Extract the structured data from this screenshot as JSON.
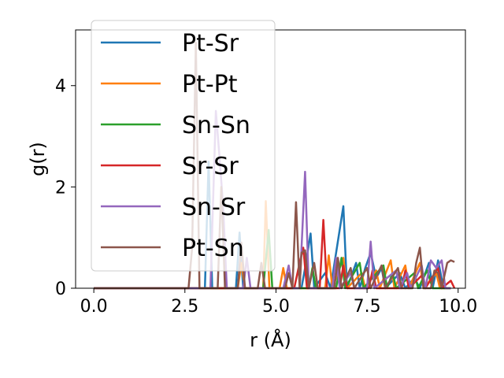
{
  "chart_data": {
    "type": "line",
    "xlabel": "r (Å)",
    "ylabel": "g(r)",
    "xlim": [
      -0.5,
      10.2
    ],
    "ylim": [
      0,
      5.1
    ],
    "xticks": [
      0.0,
      2.5,
      5.0,
      7.5,
      10.0
    ],
    "xtick_labels": [
      "0.0",
      "2.5",
      "5.0",
      "7.5",
      "10.0"
    ],
    "yticks": [
      0,
      2,
      4
    ],
    "ytick_labels": [
      "0",
      "2",
      "4"
    ],
    "grid": false,
    "legend_position": "top-left",
    "series": [
      {
        "name": "Pt-Sr",
        "color": "#1f77b4",
        "points": [
          [
            0,
            0
          ],
          [
            3.05,
            0
          ],
          [
            3.15,
            2.5
          ],
          [
            3.25,
            0
          ],
          [
            3.9,
            0
          ],
          [
            4.0,
            1.1
          ],
          [
            4.1,
            0
          ],
          [
            5.7,
            0
          ],
          [
            5.8,
            0.4
          ],
          [
            5.95,
            1.08
          ],
          [
            6.05,
            0
          ],
          [
            6.35,
            0.3
          ],
          [
            6.5,
            0
          ],
          [
            6.85,
            1.62
          ],
          [
            6.95,
            0
          ],
          [
            7.2,
            0.5
          ],
          [
            7.3,
            0
          ],
          [
            7.45,
            0.4
          ],
          [
            7.6,
            0.7
          ],
          [
            7.75,
            0.2
          ],
          [
            7.9,
            0.4
          ],
          [
            8.0,
            0
          ],
          [
            8.4,
            0.3
          ],
          [
            8.55,
            0
          ],
          [
            8.8,
            0.2
          ],
          [
            8.95,
            0
          ],
          [
            9.2,
            0.5
          ],
          [
            9.3,
            0
          ],
          [
            9.45,
            0.55
          ],
          [
            9.6,
            0
          ],
          [
            9.8,
            0
          ]
        ]
      },
      {
        "name": "Pt-Pt",
        "color": "#ff7f0e",
        "points": [
          [
            0,
            0
          ],
          [
            3.95,
            0
          ],
          [
            4.05,
            0.5
          ],
          [
            4.15,
            0
          ],
          [
            4.65,
            0
          ],
          [
            4.72,
            1.72
          ],
          [
            4.82,
            0
          ],
          [
            5.1,
            0
          ],
          [
            5.2,
            0.4
          ],
          [
            5.3,
            0
          ],
          [
            6.35,
            0
          ],
          [
            6.45,
            0.65
          ],
          [
            6.55,
            0
          ],
          [
            6.85,
            0.6
          ],
          [
            6.95,
            0
          ],
          [
            7.35,
            0.3
          ],
          [
            7.45,
            0
          ],
          [
            7.75,
            0.35
          ],
          [
            7.85,
            0
          ],
          [
            8.15,
            0.55
          ],
          [
            8.25,
            0
          ],
          [
            8.55,
            0.45
          ],
          [
            8.65,
            0
          ],
          [
            8.95,
            0.5
          ],
          [
            9.05,
            0
          ],
          [
            9.4,
            0.3
          ],
          [
            9.5,
            0
          ],
          [
            9.8,
            0
          ]
        ]
      },
      {
        "name": "Sn-Sn",
        "color": "#2ca02c",
        "points": [
          [
            0,
            0
          ],
          [
            4.65,
            0
          ],
          [
            4.8,
            1.15
          ],
          [
            4.9,
            0
          ],
          [
            5.9,
            0
          ],
          [
            6.0,
            0.4
          ],
          [
            6.1,
            0
          ],
          [
            6.65,
            0
          ],
          [
            6.8,
            0.6
          ],
          [
            6.9,
            0
          ],
          [
            7.3,
            0.5
          ],
          [
            7.4,
            0
          ],
          [
            7.95,
            0.45
          ],
          [
            8.05,
            0
          ],
          [
            8.2,
            0.3
          ],
          [
            8.3,
            0
          ],
          [
            8.8,
            0.3
          ],
          [
            8.9,
            0
          ],
          [
            9.15,
            0.35
          ],
          [
            9.3,
            0
          ],
          [
            9.8,
            0
          ]
        ]
      },
      {
        "name": "Sr-Sr",
        "color": "#d62728",
        "points": [
          [
            0,
            0
          ],
          [
            5.5,
            0
          ],
          [
            5.65,
            0.5
          ],
          [
            5.75,
            0.8
          ],
          [
            5.85,
            0
          ],
          [
            6.2,
            0
          ],
          [
            6.3,
            1.35
          ],
          [
            6.4,
            0
          ],
          [
            6.75,
            0
          ],
          [
            6.85,
            0.45
          ],
          [
            6.95,
            0
          ],
          [
            7.55,
            0
          ],
          [
            7.65,
            0.35
          ],
          [
            7.75,
            0
          ],
          [
            8.45,
            0
          ],
          [
            8.55,
            0.35
          ],
          [
            8.65,
            0
          ],
          [
            9.0,
            0.25
          ],
          [
            9.1,
            0
          ],
          [
            9.45,
            0.4
          ],
          [
            9.55,
            0
          ],
          [
            9.8,
            0.15
          ],
          [
            9.9,
            0
          ]
        ]
      },
      {
        "name": "Sn-Sr",
        "color": "#9467bd",
        "points": [
          [
            0,
            0
          ],
          [
            3.2,
            0
          ],
          [
            3.35,
            3.5
          ],
          [
            3.45,
            2.6
          ],
          [
            3.55,
            1.6
          ],
          [
            3.65,
            0
          ],
          [
            4.1,
            0
          ],
          [
            4.2,
            0.6
          ],
          [
            4.3,
            0
          ],
          [
            5.2,
            0
          ],
          [
            5.35,
            0.45
          ],
          [
            5.45,
            0
          ],
          [
            5.65,
            0
          ],
          [
            5.8,
            2.3
          ],
          [
            5.9,
            0
          ],
          [
            6.55,
            0
          ],
          [
            6.65,
            0.6
          ],
          [
            6.75,
            0
          ],
          [
            7.05,
            0.3
          ],
          [
            7.15,
            0
          ],
          [
            7.5,
            0
          ],
          [
            7.6,
            0.92
          ],
          [
            7.7,
            0
          ],
          [
            8.3,
            0.35
          ],
          [
            8.4,
            0
          ],
          [
            8.6,
            0.3
          ],
          [
            8.7,
            0
          ],
          [
            9.0,
            0.45
          ],
          [
            9.1,
            0
          ],
          [
            9.25,
            0.55
          ],
          [
            9.4,
            0.4
          ],
          [
            9.55,
            0.55
          ],
          [
            9.65,
            0
          ],
          [
            9.8,
            0
          ]
        ]
      },
      {
        "name": "Pt-Sn",
        "color": "#8c564b",
        "points": [
          [
            0,
            0
          ],
          [
            2.6,
            0
          ],
          [
            2.7,
            0.8
          ],
          [
            2.8,
            4.85
          ],
          [
            2.9,
            0
          ],
          [
            3.4,
            0
          ],
          [
            3.5,
            2.0
          ],
          [
            3.6,
            0
          ],
          [
            3.95,
            0
          ],
          [
            4.05,
            0.9
          ],
          [
            4.15,
            0
          ],
          [
            4.5,
            0
          ],
          [
            4.6,
            0.5
          ],
          [
            4.7,
            0
          ],
          [
            5.25,
            0
          ],
          [
            5.35,
            0.3
          ],
          [
            5.45,
            0
          ],
          [
            5.55,
            1.7
          ],
          [
            5.65,
            0
          ],
          [
            5.7,
            0.7
          ],
          [
            5.8,
            0.75
          ],
          [
            5.9,
            0
          ],
          [
            6.05,
            0.5
          ],
          [
            6.15,
            0
          ],
          [
            6.6,
            0
          ],
          [
            6.7,
            0.6
          ],
          [
            6.8,
            0
          ],
          [
            7.05,
            0.4
          ],
          [
            7.15,
            0
          ],
          [
            7.5,
            0.4
          ],
          [
            7.6,
            0
          ],
          [
            7.9,
            0.45
          ],
          [
            8.0,
            0
          ],
          [
            8.35,
            0.4
          ],
          [
            8.45,
            0
          ],
          [
            8.75,
            0
          ],
          [
            8.85,
            0.5
          ],
          [
            8.95,
            0.8
          ],
          [
            9.05,
            0
          ],
          [
            9.25,
            0
          ],
          [
            9.35,
            0.35
          ],
          [
            9.45,
            0.3
          ],
          [
            9.55,
            0
          ],
          [
            9.7,
            0.5
          ],
          [
            9.8,
            0.55
          ],
          [
            9.9,
            0.52
          ]
        ]
      }
    ]
  }
}
